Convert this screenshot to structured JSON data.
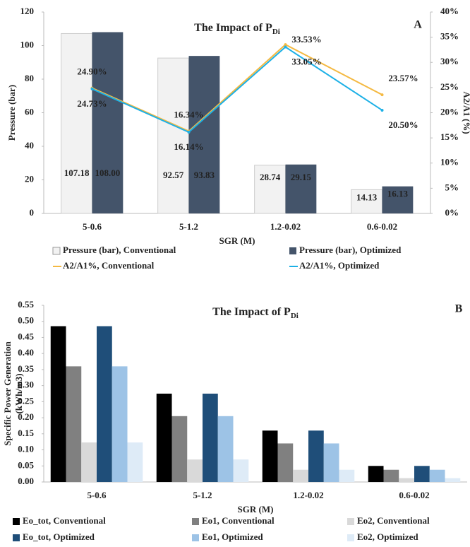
{
  "chart_data": [
    {
      "type": "combo",
      "title": "The Impact of P",
      "title_subscript": "Di",
      "panel_label": "A",
      "xlabel": "SGR (M)",
      "ylabel": "Pressure (bar)",
      "y2label": "A2/A1 (%)",
      "categories": [
        "5-0.6",
        "5-1.2",
        "1.2-0.02",
        "0.6-0.02"
      ],
      "ylim": [
        0,
        120
      ],
      "yticks": [
        0,
        20,
        40,
        60,
        80,
        100,
        120
      ],
      "y2lim": [
        0,
        40
      ],
      "y2ticks": [
        {
          "value": 0,
          "label": "0%"
        },
        {
          "value": 5,
          "label": "5%"
        },
        {
          "value": 10,
          "label": "10%"
        },
        {
          "value": 15,
          "label": "15%"
        },
        {
          "value": 20,
          "label": "20%"
        },
        {
          "value": 25,
          "label": "25%"
        },
        {
          "value": 30,
          "label": "30%"
        },
        {
          "value": 35,
          "label": "35%"
        },
        {
          "value": 40,
          "label": "40%"
        }
      ],
      "series": [
        {
          "name": "Pressure (bar), Conventional",
          "type": "bar",
          "color": "#f2f2f2",
          "values": [
            107.18,
            92.57,
            28.74,
            14.13
          ]
        },
        {
          "name": "Pressure (bar), Optimized",
          "type": "bar",
          "color": "#44546a",
          "values": [
            108,
            93.83,
            29.15,
            16.13
          ],
          "value_labels": [
            "108.00",
            "93.83",
            "29.15",
            "16.13"
          ]
        },
        {
          "name": "A2/A1%, Conventional",
          "type": "line",
          "axis": "y2",
          "color": "#f4b942",
          "values": [
            24.9,
            16.34,
            33.53,
            23.57
          ],
          "value_labels": [
            "24.90%",
            "16.34%",
            "33.53%",
            "23.57%"
          ]
        },
        {
          "name": "A2/A1%, Optimized",
          "type": "line",
          "axis": "y2",
          "color": "#1cb0e6",
          "values": [
            24.73,
            16.14,
            33.05,
            20.5
          ],
          "value_labels": [
            "24.73%",
            "16.14%",
            "33.05%",
            "20.50%"
          ]
        }
      ]
    },
    {
      "type": "bar",
      "title": "The Impact of P",
      "title_subscript": "Di",
      "panel_label": "B",
      "xlabel": "SGR (M)",
      "ylabel": [
        "Specific Power Generation",
        "(kWh/m3)"
      ],
      "categories": [
        "5-0.6",
        "5-1.2",
        "1.2-0.02",
        "0.6-0.02"
      ],
      "ylim": [
        0,
        0.55
      ],
      "yticks": [
        {
          "value": 0,
          "label": "0.00"
        },
        {
          "value": 0.05,
          "label": "0.05"
        },
        {
          "value": 0.1,
          "label": "0.10"
        },
        {
          "value": 0.15,
          "label": "0.15"
        },
        {
          "value": 0.2,
          "label": "0.20"
        },
        {
          "value": 0.25,
          "label": "0.25"
        },
        {
          "value": 0.3,
          "label": "0.30"
        },
        {
          "value": 0.35,
          "label": "0.35"
        },
        {
          "value": 0.4,
          "label": "0.40"
        },
        {
          "value": 0.45,
          "label": "0.45"
        },
        {
          "value": 0.5,
          "label": "0.50"
        },
        {
          "value": 0.55,
          "label": "0.55"
        }
      ],
      "series": [
        {
          "name": "Eo_tot, Conventional",
          "color": "#000000",
          "values": [
            0.485,
            0.275,
            0.16,
            0.05
          ]
        },
        {
          "name": "Eo1, Conventional",
          "color": "#808080",
          "values": [
            0.36,
            0.205,
            0.12,
            0.038
          ]
        },
        {
          "name": "Eo2, Conventional",
          "color": "#d9d9d9",
          "values": [
            0.123,
            0.07,
            0.038,
            0.012
          ]
        },
        {
          "name": "Eo_tot, Optimized",
          "color": "#1f4e79",
          "values": [
            0.485,
            0.275,
            0.16,
            0.05
          ]
        },
        {
          "name": "Eo1, Optimized",
          "color": "#9dc3e6",
          "values": [
            0.36,
            0.205,
            0.12,
            0.038
          ]
        },
        {
          "name": "Eo2, Optimized",
          "color": "#deebf7",
          "values": [
            0.123,
            0.07,
            0.038,
            0.012
          ]
        }
      ]
    }
  ]
}
